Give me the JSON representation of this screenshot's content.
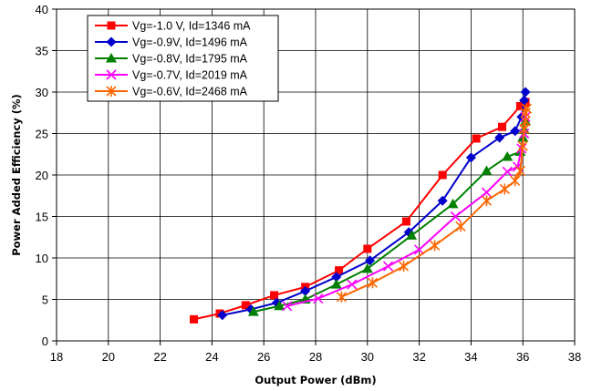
{
  "chart_data": {
    "type": "line",
    "xlabel": "Output Power (dBm)",
    "ylabel": "Power Added Efficiency (%)",
    "xlim": [
      18,
      38
    ],
    "ylim": [
      0,
      40
    ],
    "xticks": [
      18,
      20,
      22,
      24,
      26,
      28,
      30,
      32,
      34,
      36,
      38
    ],
    "yticks": [
      0,
      5,
      10,
      15,
      20,
      25,
      30,
      35,
      40
    ],
    "grid": true,
    "legend_position": "top-left",
    "series": [
      {
        "name": "Vg=-1.0 V, Id=1346 mA",
        "color": "#ff0000",
        "marker": "square",
        "x": [
          23.3,
          24.3,
          25.3,
          26.4,
          27.6,
          28.9,
          30.0,
          31.5,
          32.9,
          34.2,
          35.2,
          35.9,
          36.05,
          36.1
        ],
        "y": [
          2.6,
          3.3,
          4.3,
          5.5,
          6.5,
          8.5,
          11.1,
          14.4,
          20.0,
          24.4,
          25.8,
          28.3,
          28.6,
          28.8
        ]
      },
      {
        "name": "Vg=-0.9V, Id=1496 mA",
        "color": "#0000cc",
        "marker": "diamond",
        "x": [
          24.4,
          25.5,
          26.5,
          27.6,
          28.8,
          30.1,
          31.6,
          32.9,
          34.0,
          35.1,
          35.7,
          35.95,
          36.05,
          36.1
        ],
        "y": [
          3.1,
          3.8,
          4.6,
          6.0,
          7.7,
          9.7,
          13.1,
          16.9,
          22.1,
          24.5,
          25.3,
          27.0,
          29.0,
          30.0
        ]
      },
      {
        "name": "Vg=-0.8V, Id=1795 mA",
        "color": "#008000",
        "marker": "triangle",
        "x": [
          25.6,
          26.6,
          27.6,
          28.8,
          30.0,
          31.7,
          33.3,
          34.6,
          35.4,
          35.9,
          36.0,
          36.05,
          36.1
        ],
        "y": [
          3.5,
          4.2,
          5.0,
          6.8,
          8.7,
          12.7,
          16.5,
          20.5,
          22.2,
          22.8,
          24.5,
          25.5,
          26.5
        ]
      },
      {
        "name": "Vg=-0.7V, Id=2019 mA",
        "color": "#ff00ff",
        "marker": "x",
        "x": [
          26.9,
          28.1,
          29.4,
          30.8,
          32.0,
          33.4,
          34.6,
          35.4,
          35.8,
          35.95,
          36.05,
          36.1
        ],
        "y": [
          4.2,
          5.1,
          6.8,
          9.0,
          11.0,
          15.0,
          17.9,
          20.4,
          21.0,
          23.2,
          25.0,
          27.0
        ]
      },
      {
        "name": "Vg=-0.6V, Id=2468 mA",
        "color": "#ff6600",
        "marker": "star",
        "x": [
          29.0,
          30.2,
          31.4,
          32.6,
          33.6,
          34.6,
          35.3,
          35.7,
          35.9,
          36.0,
          36.05,
          36.1,
          36.1,
          36.15
        ],
        "y": [
          5.3,
          7.0,
          9.0,
          11.5,
          13.8,
          16.9,
          18.3,
          19.3,
          20.5,
          23.5,
          25.5,
          26.5,
          27.5,
          28.0
        ]
      }
    ]
  }
}
